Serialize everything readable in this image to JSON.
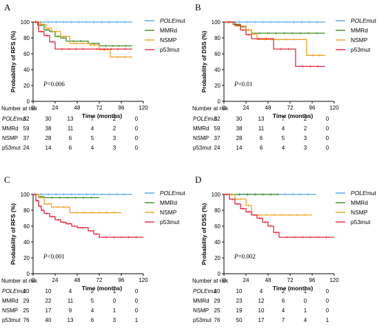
{
  "colors": {
    "POLEmut": "#4da3e8",
    "MMRd": "#3a8a1e",
    "NSMP": "#f0a020",
    "p53mut": "#e8203a"
  },
  "chart_data": [
    {
      "type": "line",
      "panel": "A",
      "ylabel": "Probability of RFS (%)",
      "xlabel": "Time (months)",
      "xticks": [
        0,
        24,
        48,
        72,
        96,
        120
      ],
      "yticks": [
        0,
        20,
        40,
        60,
        80,
        100
      ],
      "xlim": [
        0,
        120
      ],
      "ylim": [
        0,
        100
      ],
      "pvalue": {
        "prefix": "P",
        "text": "=0.006"
      },
      "legend_placement": "right",
      "series": [
        {
          "name": "POLEmut",
          "label_italic": "POLE",
          "label_rest": "mut",
          "x": [
            0,
            108
          ],
          "y": [
            100,
            100
          ]
        },
        {
          "name": "MMRd",
          "label_italic": "",
          "label_rest": "MMRd",
          "x": [
            0,
            5,
            12,
            18,
            24,
            30,
            36,
            60,
            72,
            108
          ],
          "y": [
            100,
            96,
            90,
            88,
            82,
            80,
            76,
            73,
            70,
            70
          ]
        },
        {
          "name": "NSMP",
          "label_italic": "",
          "label_rest": "NSMP",
          "x": [
            0,
            8,
            14,
            20,
            30,
            40,
            62,
            72,
            84,
            108
          ],
          "y": [
            100,
            97,
            92,
            88,
            82,
            73,
            71,
            65,
            56,
            56
          ]
        },
        {
          "name": "p53mut",
          "label_italic": "",
          "label_rest": "p53mut",
          "x": [
            0,
            6,
            12,
            18,
            24,
            62,
            108
          ],
          "y": [
            100,
            88,
            83,
            75,
            66,
            66,
            66
          ]
        }
      ],
      "risk_table": {
        "header": "Number at risk",
        "columns": [
          0,
          24,
          48,
          72,
          96,
          120
        ],
        "rows": [
          {
            "italic": "POLE",
            "rest": "mut",
            "values": [
              "32",
              "30",
              "13",
              "7",
              "2",
              "0"
            ]
          },
          {
            "italic": "",
            "rest": "MMRd",
            "values": [
              "59",
              "38",
              "11",
              "4",
              "2",
              "0"
            ]
          },
          {
            "italic": "",
            "rest": "NSMP",
            "values": [
              "37",
              "28",
              "6",
              "5",
              "3",
              "0"
            ]
          },
          {
            "italic": "",
            "rest": "p53mut",
            "values": [
              "24",
              "14",
              "6",
              "4",
              "3",
              "0"
            ]
          }
        ]
      }
    },
    {
      "type": "line",
      "panel": "B",
      "ylabel": "Probability of DSS (%)",
      "xlabel": "Time (months)",
      "xticks": [
        0,
        24,
        48,
        72,
        96,
        120
      ],
      "yticks": [
        0,
        20,
        40,
        60,
        80,
        100
      ],
      "xlim": [
        0,
        120
      ],
      "ylim": [
        0,
        100
      ],
      "pvalue": {
        "prefix": "P",
        "text": "=0.01"
      },
      "legend_placement": "right",
      "series": [
        {
          "name": "POLEmut",
          "label_italic": "POLE",
          "label_rest": "mut",
          "x": [
            0,
            110
          ],
          "y": [
            100,
            100
          ]
        },
        {
          "name": "MMRd",
          "label_italic": "",
          "label_rest": "MMRd",
          "x": [
            0,
            10,
            18,
            24,
            30,
            110
          ],
          "y": [
            100,
            97,
            94,
            90,
            86,
            86
          ]
        },
        {
          "name": "NSMP",
          "label_italic": "",
          "label_rest": "NSMP",
          "x": [
            0,
            12,
            24,
            30,
            36,
            84,
            90,
            110
          ],
          "y": [
            100,
            95,
            90,
            85,
            78,
            78,
            58,
            58
          ]
        },
        {
          "name": "p53mut",
          "label_italic": "",
          "label_rest": "p53mut",
          "x": [
            0,
            12,
            18,
            24,
            30,
            54,
            78,
            110
          ],
          "y": [
            100,
            96,
            90,
            84,
            79,
            66,
            44,
            44
          ]
        }
      ],
      "risk_table": {
        "header": "Number at risk",
        "columns": [
          0,
          24,
          48,
          72,
          96,
          120
        ],
        "rows": [
          {
            "italic": "POLE",
            "rest": "mut",
            "values": [
              "32",
              "30",
              "13",
              "7",
              "2",
              "0"
            ]
          },
          {
            "italic": "",
            "rest": "MMRd",
            "values": [
              "59",
              "38",
              "11",
              "4",
              "2",
              "0"
            ]
          },
          {
            "italic": "",
            "rest": "NSMP",
            "values": [
              "37",
              "28",
              "6",
              "5",
              "3",
              "0"
            ]
          },
          {
            "italic": "",
            "rest": "p53mut",
            "values": [
              "24",
              "14",
              "6",
              "4",
              "3",
              "0"
            ]
          }
        ]
      }
    },
    {
      "type": "line",
      "panel": "C",
      "ylabel": "Probability of RFS (%)",
      "xlabel": "Time (months)",
      "xticks": [
        0,
        24,
        48,
        72,
        96,
        120
      ],
      "yticks": [
        0,
        20,
        40,
        60,
        80,
        100
      ],
      "xlim": [
        0,
        120
      ],
      "ylim": [
        0,
        100
      ],
      "pvalue": {
        "prefix": "P",
        "text": "<0.001"
      },
      "legend_placement": "right",
      "series": [
        {
          "name": "POLEmut",
          "label_italic": "POLE",
          "label_rest": "mut",
          "x": [
            0,
            108
          ],
          "y": [
            100,
            100
          ]
        },
        {
          "name": "MMRd",
          "label_italic": "",
          "label_rest": "MMRd",
          "x": [
            0,
            6,
            12,
            72
          ],
          "y": [
            100,
            97,
            96,
            96
          ]
        },
        {
          "name": "NSMP",
          "label_italic": "",
          "label_rest": "NSMP",
          "x": [
            0,
            6,
            12,
            20,
            40,
            96
          ],
          "y": [
            100,
            96,
            88,
            84,
            77,
            77
          ]
        },
        {
          "name": "p53mut",
          "label_italic": "",
          "label_rest": "p53mut",
          "x": [
            0,
            3,
            6,
            9,
            12,
            18,
            24,
            30,
            36,
            42,
            48,
            60,
            66,
            72,
            120
          ],
          "y": [
            100,
            92,
            85,
            80,
            76,
            72,
            68,
            65,
            63,
            60,
            58,
            54,
            50,
            46,
            46
          ]
        }
      ],
      "risk_table": {
        "header": "Number at risk",
        "columns": [
          0,
          24,
          48,
          72,
          96,
          120
        ],
        "rows": [
          {
            "italic": "POLE",
            "rest": "mut",
            "values": [
              "10",
              "10",
              "4",
              "2",
              "1",
              "0"
            ]
          },
          {
            "italic": "",
            "rest": "MMRd",
            "values": [
              "29",
              "22",
              "11",
              "5",
              "0",
              "0"
            ]
          },
          {
            "italic": "",
            "rest": "NSMP",
            "values": [
              "25",
              "17",
              "9",
              "4",
              "1",
              "0"
            ]
          },
          {
            "italic": "",
            "rest": "p53mut",
            "values": [
              "76",
              "40",
              "13",
              "6",
              "3",
              "1"
            ]
          }
        ]
      }
    },
    {
      "type": "line",
      "panel": "D",
      "ylabel": "Probability of DSS (%)",
      "xlabel": "Time (months)",
      "xticks": [
        0,
        24,
        48,
        72,
        96,
        120
      ],
      "yticks": [
        0,
        20,
        40,
        60,
        80,
        100
      ],
      "xlim": [
        0,
        120
      ],
      "ylim": [
        0,
        100
      ],
      "pvalue": {
        "prefix": "P",
        "text": "=0.002"
      },
      "legend_placement": "right",
      "series": [
        {
          "name": "POLEmut",
          "label_italic": "POLE",
          "label_rest": "mut",
          "x": [
            0,
            100
          ],
          "y": [
            100,
            100
          ]
        },
        {
          "name": "MMRd",
          "label_italic": "",
          "label_rest": "MMRd",
          "x": [
            0,
            60
          ],
          "y": [
            100,
            100
          ]
        },
        {
          "name": "NSMP",
          "label_italic": "",
          "label_rest": "NSMP",
          "x": [
            0,
            12,
            24,
            30,
            96
          ],
          "y": [
            100,
            94,
            86,
            74,
            74
          ]
        },
        {
          "name": "p53mut",
          "label_italic": "",
          "label_rest": "p53mut",
          "x": [
            0,
            6,
            12,
            18,
            24,
            30,
            36,
            42,
            48,
            54,
            60,
            120
          ],
          "y": [
            100,
            94,
            88,
            82,
            78,
            74,
            70,
            65,
            60,
            52,
            46,
            46
          ]
        }
      ],
      "risk_table": {
        "header": "Number at risk",
        "columns": [
          0,
          24,
          48,
          72,
          96,
          120
        ],
        "rows": [
          {
            "italic": "POLE",
            "rest": "mut",
            "values": [
              "10",
              "10",
              "4",
              "2",
              "1",
              "0"
            ]
          },
          {
            "italic": "",
            "rest": "MMRd",
            "values": [
              "29",
              "23",
              "12",
              "6",
              "0",
              "0"
            ]
          },
          {
            "italic": "",
            "rest": "NSMP",
            "values": [
              "25",
              "19",
              "10",
              "4",
              "1",
              "0"
            ]
          },
          {
            "italic": "",
            "rest": "p53mut",
            "values": [
              "76",
              "50",
              "17",
              "7",
              "4",
              "1"
            ]
          }
        ]
      }
    }
  ]
}
